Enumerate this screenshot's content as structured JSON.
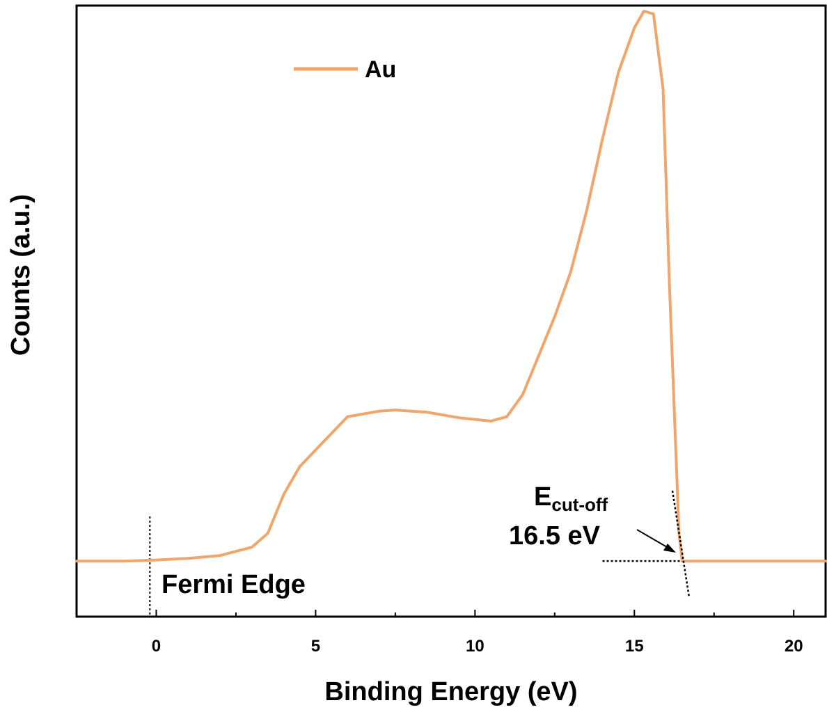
{
  "chart_data": {
    "type": "line",
    "xlabel": "Binding Energy (eV)",
    "ylabel": "Counts (a.u.)",
    "xlim": [
      -2.5,
      21
    ],
    "ylim": [
      -0.1,
      1.0
    ],
    "x_ticks_major": [
      0,
      5,
      10,
      15,
      20
    ],
    "x_tick_labels": [
      "0",
      "5",
      "10",
      "15",
      "20"
    ],
    "y_ticks_shown": false,
    "grid": false,
    "legend_position": "top-left",
    "series": [
      {
        "name": "Au",
        "color": "#F0A56A",
        "x": [
          -2.5,
          -1,
          0,
          1,
          2,
          3,
          3.5,
          4,
          4.5,
          5,
          5.5,
          6,
          6.5,
          7,
          7.5,
          8,
          8.5,
          9,
          9.5,
          10,
          10.5,
          11,
          11.5,
          12,
          12.5,
          13,
          13.5,
          14,
          14.5,
          15,
          15.3,
          15.6,
          15.9,
          16.1,
          16.3,
          16.4,
          16.5,
          17,
          18,
          19,
          20,
          21
        ],
        "y": [
          0.0,
          0.0,
          0.002,
          0.005,
          0.01,
          0.025,
          0.05,
          0.12,
          0.17,
          0.2,
          0.23,
          0.26,
          0.265,
          0.27,
          0.272,
          0.27,
          0.268,
          0.263,
          0.258,
          0.255,
          0.252,
          0.26,
          0.3,
          0.37,
          0.44,
          0.52,
          0.63,
          0.76,
          0.88,
          0.96,
          0.99,
          0.985,
          0.85,
          0.5,
          0.2,
          0.05,
          0.0,
          0.0,
          0.0,
          0.0,
          0.0,
          0.0
        ]
      }
    ],
    "annotations": {
      "fermi_edge_label": "Fermi Edge",
      "fermi_edge_x": -0.2,
      "cutoff_symbol": "E",
      "cutoff_subscript": "cut-off",
      "cutoff_value_label": "16.5 eV",
      "cutoff_x": 16.5
    }
  }
}
